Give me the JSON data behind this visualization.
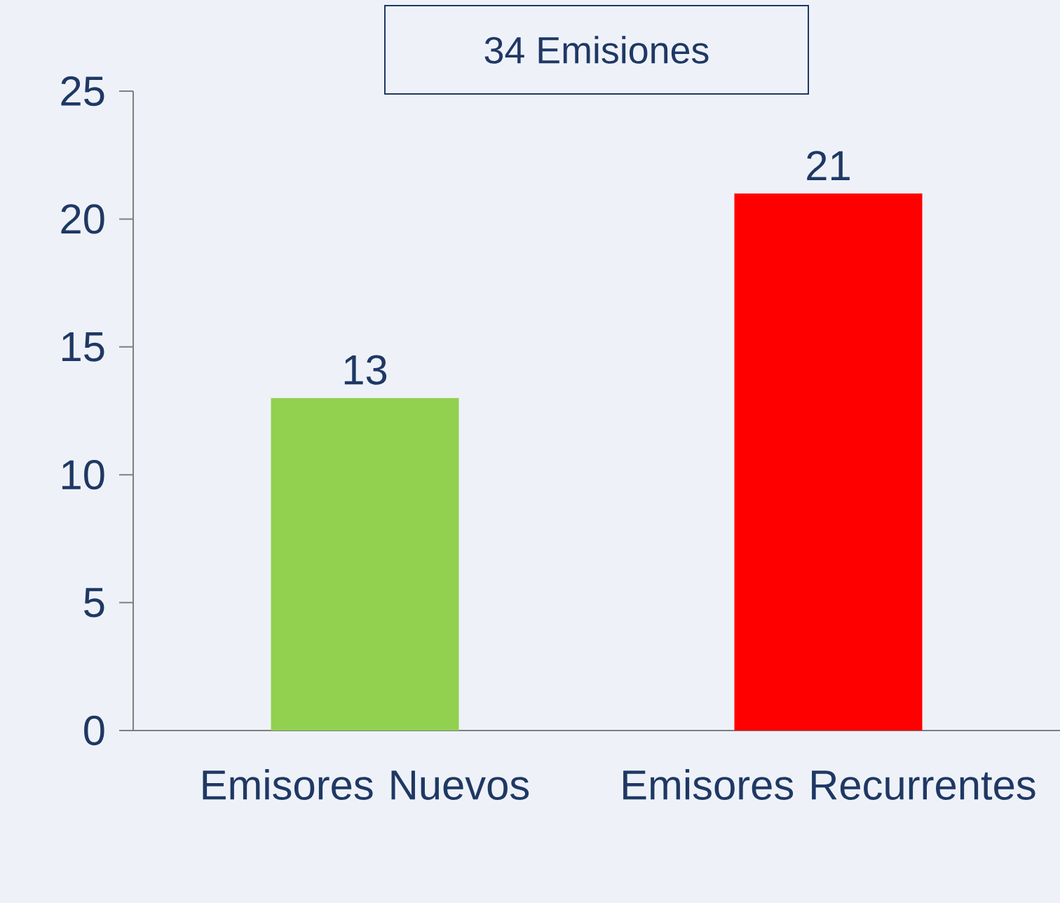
{
  "chart_data": {
    "type": "bar",
    "title": "34 Emisiones",
    "categories": [
      "Emisores Nuevos",
      "Emisores Recurrentes"
    ],
    "values": [
      13,
      21
    ],
    "colors": [
      "#92d050",
      "#ff0000"
    ],
    "ylim": [
      0,
      25
    ],
    "yticks": [
      0,
      5,
      10,
      15,
      20,
      25
    ],
    "data_labels": true
  }
}
